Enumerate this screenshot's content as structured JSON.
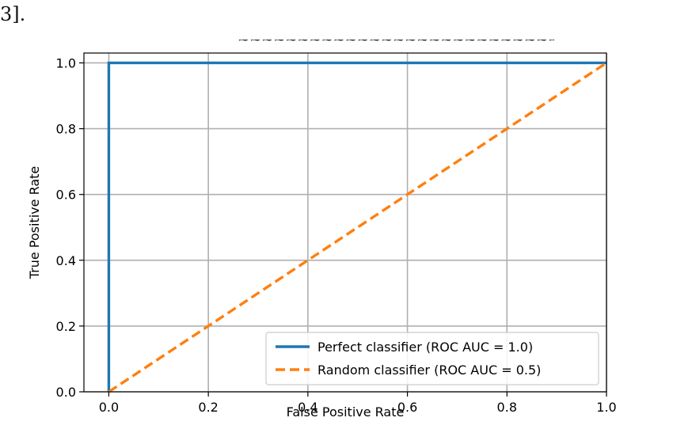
{
  "page": {
    "fragment_text": "3]."
  },
  "chart_data": {
    "type": "line",
    "title": "",
    "xlabel": "False Positive Rate",
    "ylabel": "True Positive Rate",
    "xlim": [
      -0.05,
      1.0
    ],
    "ylim": [
      0.0,
      1.03
    ],
    "xticks": [
      0.0,
      0.2,
      0.4,
      0.6,
      0.8,
      1.0
    ],
    "xtick_labels": [
      "0.0",
      "0.2",
      "0.4",
      "0.6",
      "0.8",
      "1.0"
    ],
    "yticks": [
      0.0,
      0.2,
      0.4,
      0.6,
      0.8,
      1.0
    ],
    "ytick_labels": [
      "0.0",
      "0.2",
      "0.4",
      "0.6",
      "0.8",
      "1.0"
    ],
    "grid": true,
    "legend_position": "lower-right",
    "series": [
      {
        "name": "Perfect classifier (ROC AUC = 1.0)",
        "x": [
          0.0,
          0.0,
          1.0
        ],
        "y": [
          0.0,
          1.0,
          1.0
        ],
        "color": "#1f77b4",
        "style": "solid"
      },
      {
        "name": "Random classifier (ROC AUC = 0.5)",
        "x": [
          0.0,
          1.0
        ],
        "y": [
          0.0,
          1.0
        ],
        "color": "#ff7f0e",
        "style": "dashed"
      }
    ]
  }
}
